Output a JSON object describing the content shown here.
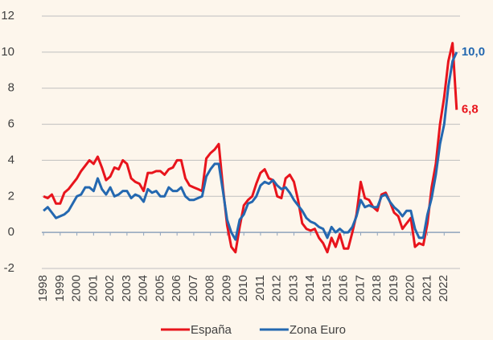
{
  "chart_data": {
    "type": "line",
    "x": [
      1998,
      1998.25,
      1998.5,
      1998.75,
      1999,
      1999.25,
      1999.5,
      1999.75,
      2000,
      2000.25,
      2000.5,
      2000.75,
      2001,
      2001.25,
      2001.5,
      2001.75,
      2002,
      2002.25,
      2002.5,
      2002.75,
      2003,
      2003.25,
      2003.5,
      2003.75,
      2004,
      2004.25,
      2004.5,
      2004.75,
      2005,
      2005.25,
      2005.5,
      2005.75,
      2006,
      2006.25,
      2006.5,
      2006.75,
      2007,
      2007.25,
      2007.5,
      2007.75,
      2008,
      2008.25,
      2008.5,
      2008.75,
      2009,
      2009.25,
      2009.5,
      2009.75,
      2010,
      2010.25,
      2010.5,
      2010.75,
      2011,
      2011.25,
      2011.5,
      2011.75,
      2012,
      2012.25,
      2012.5,
      2012.75,
      2013,
      2013.25,
      2013.5,
      2013.75,
      2014,
      2014.25,
      2014.5,
      2014.75,
      2015,
      2015.25,
      2015.5,
      2015.75,
      2016,
      2016.25,
      2016.5,
      2016.75,
      2017,
      2017.25,
      2017.5,
      2017.75,
      2018,
      2018.25,
      2018.5,
      2018.75,
      2019,
      2019.25,
      2019.5,
      2019.75,
      2020,
      2020.25,
      2020.5,
      2020.75,
      2021,
      2021.25,
      2021.5,
      2021.75,
      2022,
      2022.25,
      2022.5,
      2022.75
    ],
    "series": [
      {
        "name": "España",
        "color": "#e8141c",
        "end_label": "6,8",
        "values": [
          2.0,
          1.9,
          2.1,
          1.6,
          1.6,
          2.2,
          2.4,
          2.7,
          3.0,
          3.4,
          3.7,
          4.0,
          3.8,
          4.2,
          3.6,
          2.9,
          3.1,
          3.6,
          3.5,
          4.0,
          3.8,
          3.0,
          2.8,
          2.7,
          2.3,
          3.3,
          3.3,
          3.4,
          3.4,
          3.2,
          3.5,
          3.6,
          4.0,
          4.0,
          3.0,
          2.6,
          2.5,
          2.4,
          2.3,
          4.1,
          4.4,
          4.6,
          4.9,
          2.5,
          0.4,
          -0.8,
          -1.1,
          0.3,
          1.5,
          1.8,
          2.0,
          2.7,
          3.3,
          3.5,
          3.0,
          2.9,
          2.0,
          1.9,
          3.0,
          3.2,
          2.8,
          1.8,
          0.5,
          0.2,
          0.1,
          0.2,
          -0.3,
          -0.6,
          -1.1,
          -0.3,
          -0.8,
          -0.1,
          -0.9,
          -0.9,
          0.0,
          1.0,
          2.8,
          1.9,
          1.8,
          1.4,
          1.2,
          2.1,
          2.2,
          1.7,
          1.1,
          0.9,
          0.2,
          0.5,
          0.8,
          -0.8,
          -0.6,
          -0.7,
          0.5,
          2.5,
          3.8,
          6.0,
          7.5,
          9.5,
          10.5,
          6.8
        ]
      },
      {
        "name": "Zona Euro",
        "color": "#2468b0",
        "end_label": "10,0",
        "values": [
          1.2,
          1.4,
          1.1,
          0.8,
          0.9,
          1.0,
          1.2,
          1.6,
          2.0,
          2.1,
          2.5,
          2.5,
          2.3,
          3.0,
          2.4,
          2.1,
          2.5,
          2.0,
          2.1,
          2.3,
          2.3,
          1.9,
          2.1,
          2.0,
          1.7,
          2.4,
          2.2,
          2.3,
          2.0,
          2.0,
          2.5,
          2.3,
          2.3,
          2.5,
          2.0,
          1.8,
          1.8,
          1.9,
          2.0,
          3.1,
          3.5,
          3.8,
          3.8,
          2.3,
          0.7,
          0.0,
          -0.4,
          0.7,
          1.0,
          1.6,
          1.7,
          2.0,
          2.6,
          2.8,
          2.7,
          2.9,
          2.6,
          2.4,
          2.5,
          2.2,
          1.8,
          1.5,
          1.2,
          0.8,
          0.6,
          0.5,
          0.3,
          0.2,
          -0.3,
          0.3,
          0.0,
          0.2,
          0.0,
          0.0,
          0.3,
          0.9,
          1.8,
          1.4,
          1.5,
          1.4,
          1.4,
          2.0,
          2.1,
          1.7,
          1.4,
          1.2,
          0.9,
          1.2,
          1.2,
          0.2,
          -0.3,
          -0.3,
          1.0,
          1.9,
          3.2,
          4.9,
          6.0,
          8.1,
          9.5,
          10.0
        ]
      }
    ],
    "xlim": [
      1997.9,
      2022.95
    ],
    "xticks": [
      1998,
      1999,
      2000,
      2001,
      2002,
      2003,
      2004,
      2005,
      2006,
      2007,
      2008,
      2009,
      2010,
      2011,
      2012,
      2013,
      2014,
      2015,
      2016,
      2017,
      2018,
      2019,
      2020,
      2021,
      2022
    ],
    "ylim": [
      -2,
      12
    ],
    "yticks": [
      -2,
      0,
      2,
      4,
      6,
      8,
      10,
      12
    ],
    "grid": true,
    "legend": "bottom"
  }
}
